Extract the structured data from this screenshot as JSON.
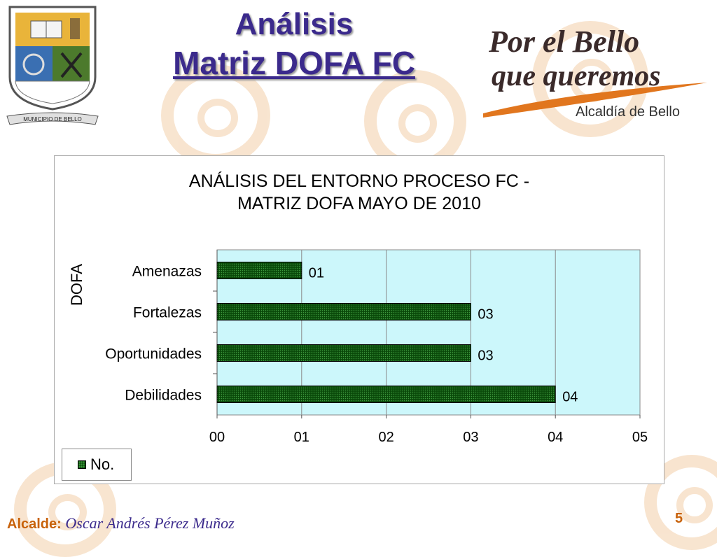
{
  "slide": {
    "title_line1": "Análisis",
    "title_line2": "Matriz DOFA FC",
    "crest_caption": "MUNICIPIO DE BELLO",
    "brand_line1": "Por el Bello",
    "brand_line2": "que queremos",
    "brand_sub": "Alcaldía de Bello",
    "footer_label": "Alcalde:",
    "footer_name": "Oscar Andrés Pérez Muñoz",
    "page_number": "5"
  },
  "chart_data": {
    "type": "bar",
    "orientation": "horizontal",
    "title": "ANÁLISIS DEL ENTORNO PROCESO FC - MATRIZ DOFA MAYO DE 2010",
    "title_line1": "ANÁLISIS DEL ENTORNO PROCESO FC -",
    "title_line2": "MATRIZ DOFA MAYO DE 2010",
    "ylabel": "DOFA",
    "xlabel": "",
    "categories": [
      "Debilidades",
      "Oportunidades",
      "Fortalezas",
      "Amenazas"
    ],
    "series": [
      {
        "name": "No.",
        "values": [
          4,
          3,
          3,
          1
        ]
      }
    ],
    "data_labels": [
      "04",
      "03",
      "03",
      "01"
    ],
    "xlim": [
      0,
      5
    ],
    "x_ticks": [
      "00",
      "01",
      "02",
      "03",
      "04",
      "05"
    ],
    "grid": true,
    "legend_position": "bottom-left",
    "colors": {
      "plot_bg": "#ccf7fb",
      "bar": "#0a4a0a",
      "bar_dots": "#3f9a3f",
      "grid": "#8a8a8a"
    }
  }
}
